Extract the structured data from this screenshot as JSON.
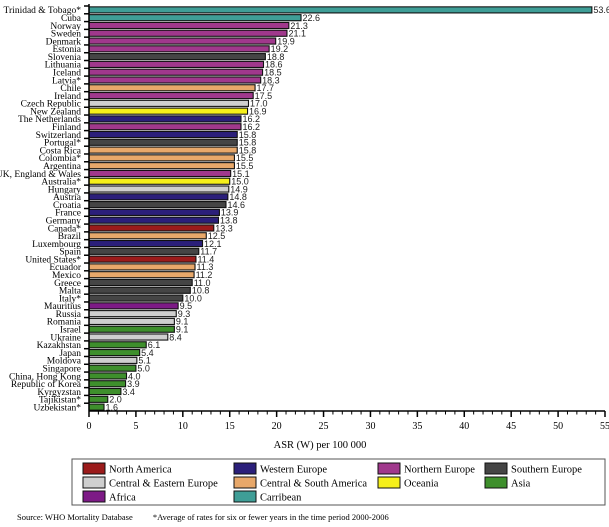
{
  "chart_data": {
    "type": "bar",
    "orientation": "horizontal",
    "title": "",
    "xlabel": "ASR (W)  per 100 000",
    "ylabel": "",
    "xlim": [
      0,
      55
    ],
    "xticks": [
      0,
      5,
      10,
      15,
      20,
      25,
      30,
      35,
      40,
      45,
      50,
      55
    ],
    "grid": false,
    "legend_position": "bottom",
    "regions": [
      {
        "name": "North America",
        "color": "#9b1b1b"
      },
      {
        "name": "Western Europe",
        "color": "#2b1f7a"
      },
      {
        "name": "Northern Europe",
        "color": "#a0388c"
      },
      {
        "name": "Southern Europe",
        "color": "#454545"
      },
      {
        "name": "Central & Eastern Europe",
        "color": "#cfcfcf"
      },
      {
        "name": "Central & South America",
        "color": "#e8a86a"
      },
      {
        "name": "Oceania",
        "color": "#f5ef1a"
      },
      {
        "name": "Asia",
        "color": "#3e8f2c"
      },
      {
        "name": "Africa",
        "color": "#7d1a86"
      },
      {
        "name": "Carribean",
        "color": "#3f9e97"
      }
    ],
    "bars": [
      {
        "category": "Trinidad & Tobago*",
        "value": 53.6,
        "region": "Carribean"
      },
      {
        "category": "Cuba",
        "value": 22.6,
        "region": "Carribean"
      },
      {
        "category": "Norway",
        "value": 21.3,
        "region": "Northern Europe"
      },
      {
        "category": "Sweden",
        "value": 21.1,
        "region": "Northern Europe"
      },
      {
        "category": "Denmark",
        "value": 19.9,
        "region": "Northern Europe"
      },
      {
        "category": "Estonia",
        "value": 19.2,
        "region": "Northern Europe"
      },
      {
        "category": "Slovenia",
        "value": 18.8,
        "region": "Southern Europe"
      },
      {
        "category": "Lithuania",
        "value": 18.6,
        "region": "Northern Europe"
      },
      {
        "category": "Iceland",
        "value": 18.5,
        "region": "Northern Europe"
      },
      {
        "category": "Latvia*",
        "value": 18.3,
        "region": "Northern Europe"
      },
      {
        "category": "Chile",
        "value": 17.7,
        "region": "Central & South America"
      },
      {
        "category": "Ireland",
        "value": 17.5,
        "region": "Northern Europe"
      },
      {
        "category": "Czech Republic",
        "value": 17.0,
        "region": "Central & Eastern Europe"
      },
      {
        "category": "New Zealand",
        "value": 16.9,
        "region": "Oceania"
      },
      {
        "category": "The Netherlands",
        "value": 16.2,
        "region": "Western Europe"
      },
      {
        "category": "Finland",
        "value": 16.2,
        "region": "Northern Europe"
      },
      {
        "category": "Switzerland",
        "value": 15.8,
        "region": "Western Europe"
      },
      {
        "category": "Portugal*",
        "value": 15.8,
        "region": "Southern Europe"
      },
      {
        "category": "Costa Rica",
        "value": 15.8,
        "region": "Central & South America"
      },
      {
        "category": "Colombia*",
        "value": 15.5,
        "region": "Central & South America"
      },
      {
        "category": "Argentina",
        "value": 15.5,
        "region": "Central & South America"
      },
      {
        "category": "UK, England & Wales",
        "value": 15.1,
        "region": "Northern Europe"
      },
      {
        "category": "Australia*",
        "value": 15.0,
        "region": "Oceania"
      },
      {
        "category": "Hungary",
        "value": 14.9,
        "region": "Central & Eastern Europe"
      },
      {
        "category": "Austria",
        "value": 14.8,
        "region": "Western Europe"
      },
      {
        "category": "Croatia",
        "value": 14.6,
        "region": "Southern Europe"
      },
      {
        "category": "France",
        "value": 13.9,
        "region": "Western Europe"
      },
      {
        "category": "Germany",
        "value": 13.8,
        "region": "Western Europe"
      },
      {
        "category": "Canada*",
        "value": 13.3,
        "region": "North America"
      },
      {
        "category": "Brazil",
        "value": 12.5,
        "region": "Central & South America"
      },
      {
        "category": "Luxembourg",
        "value": 12.1,
        "region": "Western Europe"
      },
      {
        "category": "Spain",
        "value": 11.7,
        "region": "Southern Europe"
      },
      {
        "category": "United States*",
        "value": 11.4,
        "region": "North America"
      },
      {
        "category": "Ecuador",
        "value": 11.3,
        "region": "Central & South America"
      },
      {
        "category": "Mexico",
        "value": 11.2,
        "region": "Central & South America"
      },
      {
        "category": "Greece",
        "value": 11.0,
        "region": "Southern Europe"
      },
      {
        "category": "Malta",
        "value": 10.8,
        "region": "Southern Europe"
      },
      {
        "category": "Italy*",
        "value": 10.0,
        "region": "Southern Europe"
      },
      {
        "category": "Mauritius",
        "value": 9.5,
        "region": "Africa"
      },
      {
        "category": "Russia",
        "value": 9.3,
        "region": "Central & Eastern Europe"
      },
      {
        "category": "Romania",
        "value": 9.1,
        "region": "Central & Eastern Europe"
      },
      {
        "category": "Israel",
        "value": 9.1,
        "region": "Asia"
      },
      {
        "category": "Ukraine",
        "value": 8.4,
        "region": "Central & Eastern Europe"
      },
      {
        "category": "Kazakhstan",
        "value": 6.1,
        "region": "Asia"
      },
      {
        "category": "Japan",
        "value": 5.4,
        "region": "Asia"
      },
      {
        "category": "Moldova",
        "value": 5.1,
        "region": "Central & Eastern Europe"
      },
      {
        "category": "Singapore",
        "value": 5.0,
        "region": "Asia"
      },
      {
        "category": "China, Hong Kong",
        "value": 4.0,
        "region": "Asia"
      },
      {
        "category": "Republic of Korea",
        "value": 3.9,
        "region": "Asia"
      },
      {
        "category": "Kyrgyzstan",
        "value": 3.4,
        "region": "Asia"
      },
      {
        "category": "Tajikistan*",
        "value": 2.0,
        "region": "Asia"
      },
      {
        "category": "Uzbekistan*",
        "value": 1.6,
        "region": "Asia"
      }
    ],
    "legend_order": [
      "North America",
      "Western Europe",
      "Northern Europe",
      "Southern Europe",
      "Central & Eastern Europe",
      "Central & South America",
      "Oceania",
      "Asia",
      "Africa",
      "Carribean"
    ]
  },
  "footer": {
    "source": "Source:  WHO Mortality Database",
    "note": "*Average of rates for six or fewer years in the time period 2000-2006"
  }
}
